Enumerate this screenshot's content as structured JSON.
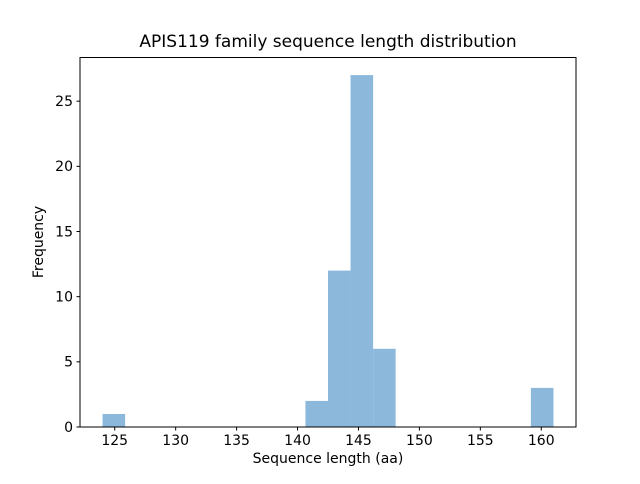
{
  "chart_data": {
    "type": "bar",
    "subtype": "histogram",
    "title": "APIS119 family sequence length distribution",
    "xlabel": "Sequence length (aa)",
    "ylabel": "Frequency",
    "bar_color": "#8cb8dc",
    "frame_color": "#000000",
    "background_color": "#ffffff",
    "grid": false,
    "legend": "none",
    "xlim": [
      122.15,
      162.85
    ],
    "ylim": [
      0,
      28.35
    ],
    "xticks": [
      125,
      130,
      135,
      140,
      145,
      150,
      155,
      160
    ],
    "yticks": [
      0,
      5,
      10,
      15,
      20,
      25
    ],
    "bin_width": 1.85,
    "data_range": [
      124,
      161
    ],
    "bars": [
      {
        "x0": 124.0,
        "x1": 125.85,
        "count": 1
      },
      {
        "x0": 140.65,
        "x1": 142.5,
        "count": 2
      },
      {
        "x0": 142.5,
        "x1": 144.35,
        "count": 12
      },
      {
        "x0": 144.35,
        "x1": 146.2,
        "count": 27
      },
      {
        "x0": 146.2,
        "x1": 148.05,
        "count": 6
      },
      {
        "x0": 159.15,
        "x1": 161.0,
        "count": 3
      }
    ]
  }
}
